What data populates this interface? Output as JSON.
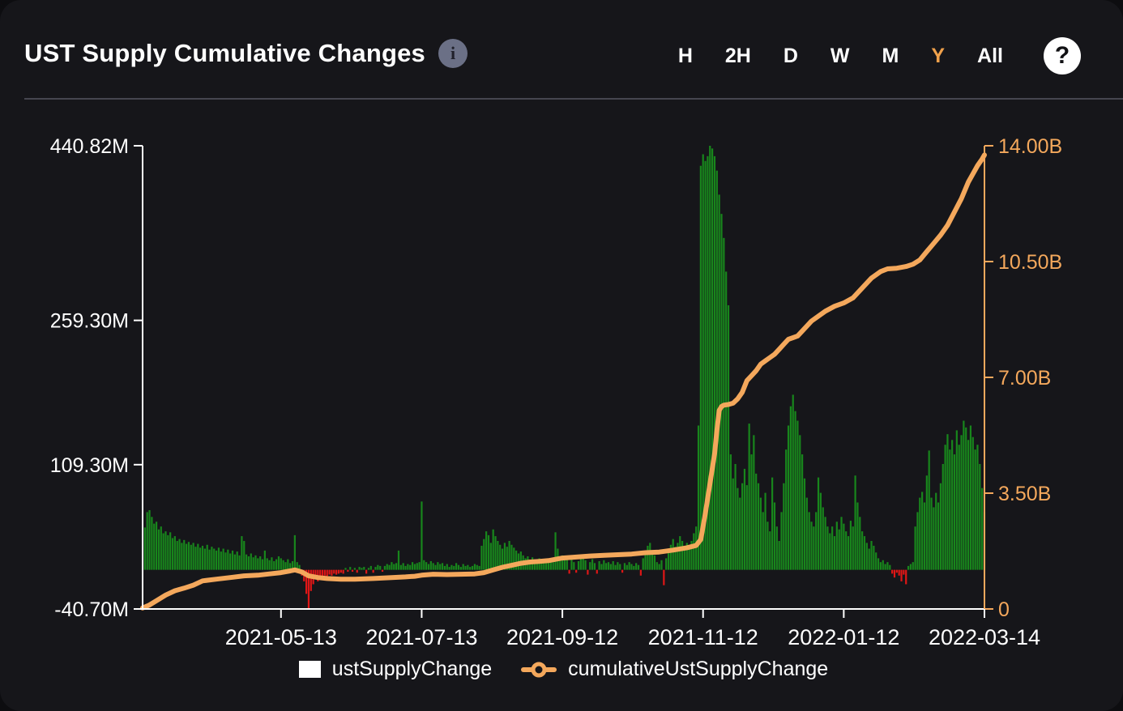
{
  "header": {
    "title": "UST Supply Cumulative Changes",
    "info_glyph": "i"
  },
  "range_selector": {
    "options": [
      "H",
      "2H",
      "D",
      "W",
      "M",
      "Y",
      "All"
    ],
    "active": "Y"
  },
  "help": {
    "label": "?"
  },
  "colors": {
    "page_bg": "#0d0d10",
    "card_bg": "#16161a",
    "axis_left": "#ffffff",
    "axis_right": "#f4a85c",
    "bar_positive": "#18861c",
    "bar_negative": "#df1616",
    "line": "#f4a85c",
    "selector_active": "#f0a14b",
    "divider": "#46464f"
  },
  "chart_data": {
    "type": "bar",
    "title": "UST Supply Cumulative Changes",
    "x_days_total": 365,
    "x_start": "2021-03-15",
    "x_ticks": [
      {
        "day": 60,
        "label": "2021-05-13"
      },
      {
        "day": 121,
        "label": "2021-07-13"
      },
      {
        "day": 182,
        "label": "2021-09-12"
      },
      {
        "day": 243,
        "label": "2021-11-12"
      },
      {
        "day": 304,
        "label": "2022-01-12"
      },
      {
        "day": 365,
        "label": "2022-03-14"
      }
    ],
    "left_axis": {
      "unit": "M",
      "min": -40.7,
      "max": 440.82,
      "ticks": [
        {
          "value": 440.82,
          "label": "440.82M"
        },
        {
          "value": 259.3,
          "label": "259.30M"
        },
        {
          "value": 109.3,
          "label": "109.30M"
        },
        {
          "value": -40.7,
          "label": "-40.70M"
        }
      ]
    },
    "right_axis": {
      "unit": "B",
      "min": 0,
      "max": 14,
      "ticks": [
        {
          "value": 14.0,
          "label": "14.00B"
        },
        {
          "value": 10.5,
          "label": "10.50B"
        },
        {
          "value": 7.0,
          "label": "7.00B"
        },
        {
          "value": 3.5,
          "label": "3.50B"
        },
        {
          "value": 0,
          "label": "0"
        }
      ]
    },
    "series": [
      {
        "name": "ustSupplyChange",
        "type": "bar",
        "axis": "left",
        "unit": "M",
        "colors": {
          "positive": "#18861c",
          "negative": "#df1616"
        },
        "values": [
          44,
          60,
          62,
          55,
          48,
          50,
          42,
          45,
          38,
          40,
          36,
          39,
          33,
          35,
          30,
          32,
          28,
          31,
          27,
          29,
          26,
          28,
          24,
          27,
          23,
          25,
          22,
          26,
          21,
          24,
          22,
          20,
          23,
          19,
          22,
          18,
          21,
          17,
          20,
          16,
          19,
          15,
          35,
          30,
          16,
          14,
          17,
          13,
          15,
          12,
          14,
          11,
          20,
          12,
          10,
          13,
          9,
          11,
          14,
          12,
          10,
          8,
          11,
          7,
          9,
          36,
          8,
          5,
          -6,
          -12,
          -25,
          -40.7,
          -22,
          -15,
          -10,
          -12,
          -8,
          -9,
          -6,
          -7,
          -5,
          -6,
          -4,
          -5,
          -4,
          -3,
          -4,
          2,
          -2,
          3,
          -2,
          2,
          -3,
          3,
          2,
          3,
          -4,
          2,
          4,
          -3,
          3,
          5,
          4,
          -2,
          4,
          6,
          5,
          8,
          6,
          7,
          20,
          5,
          7,
          4,
          6,
          5,
          8,
          6,
          7,
          8,
          71,
          10,
          8,
          6,
          9,
          7,
          5,
          8,
          6,
          7,
          4,
          6,
          3,
          5,
          4,
          7,
          5,
          3,
          6,
          4,
          5,
          3,
          4,
          6,
          5,
          4,
          25,
          32,
          40,
          36,
          28,
          42,
          35,
          30,
          26,
          22,
          28,
          24,
          30,
          26,
          23,
          20,
          17,
          19,
          15,
          12,
          14,
          10,
          13,
          11,
          9,
          12,
          10,
          8,
          11,
          9,
          10,
          8,
          39,
          22,
          12,
          15,
          10,
          13,
          -4,
          11,
          8,
          -3,
          9,
          12,
          14,
          10,
          -5,
          8,
          11,
          7,
          -4,
          9,
          6,
          10,
          7,
          8,
          6,
          9,
          5,
          8,
          6,
          -3,
          7,
          5,
          8,
          6,
          4,
          7,
          5,
          -6,
          12,
          18,
          25,
          28,
          20,
          15,
          8,
          6,
          10,
          -16,
          12,
          20,
          26,
          32,
          24,
          28,
          35,
          30,
          25,
          28,
          22,
          30,
          38,
          45,
          150,
          420,
          432,
          425,
          430,
          440.82,
          438,
          430,
          415,
          390,
          370,
          345,
          310,
          275,
          120,
          95,
          110,
          85,
          75,
          90,
          105,
          88,
          152,
          120,
          140,
          100,
          90,
          75,
          60,
          80,
          50,
          40,
          96,
          70,
          45,
          30,
          60,
          90,
          125,
          150,
          170,
          182,
          165,
          155,
          140,
          120,
          95,
          75,
          60,
          50,
          45,
          60,
          96,
          80,
          65,
          55,
          45,
          38,
          45,
          35,
          50,
          42,
          55,
          48,
          40,
          35,
          51,
          45,
          98,
          70,
          55,
          40,
          35,
          28,
          22,
          30,
          25,
          18,
          12,
          8,
          10,
          6,
          8,
          5,
          -4,
          -8,
          -3,
          -6,
          -12,
          -5,
          -15,
          4,
          6,
          8,
          45,
          60,
          75,
          81,
          70,
          98,
          124,
          75,
          65,
          80,
          70,
          90,
          110,
          130,
          141,
          125,
          135,
          120,
          145,
          130,
          140,
          155,
          148,
          135,
          150,
          138,
          125,
          130,
          110,
          85,
          60
        ]
      },
      {
        "name": "cumulativeUstSupplyChange",
        "type": "line",
        "axis": "right",
        "unit": "B",
        "color": "#f4a85c",
        "points": [
          [
            0,
            0.03
          ],
          [
            3,
            0.12
          ],
          [
            6,
            0.25
          ],
          [
            10,
            0.42
          ],
          [
            14,
            0.55
          ],
          [
            18,
            0.63
          ],
          [
            22,
            0.72
          ],
          [
            26,
            0.85
          ],
          [
            32,
            0.9
          ],
          [
            38,
            0.95
          ],
          [
            44,
            1.0
          ],
          [
            50,
            1.02
          ],
          [
            55,
            1.06
          ],
          [
            60,
            1.1
          ],
          [
            64,
            1.15
          ],
          [
            66,
            1.18
          ],
          [
            69,
            1.12
          ],
          [
            72,
            1.0
          ],
          [
            76,
            0.95
          ],
          [
            80,
            0.92
          ],
          [
            86,
            0.9
          ],
          [
            92,
            0.9
          ],
          [
            100,
            0.92
          ],
          [
            108,
            0.95
          ],
          [
            114,
            0.97
          ],
          [
            118,
            0.99
          ],
          [
            121,
            1.02
          ],
          [
            126,
            1.05
          ],
          [
            132,
            1.04
          ],
          [
            138,
            1.05
          ],
          [
            144,
            1.06
          ],
          [
            148,
            1.1
          ],
          [
            152,
            1.18
          ],
          [
            156,
            1.26
          ],
          [
            160,
            1.32
          ],
          [
            164,
            1.38
          ],
          [
            168,
            1.42
          ],
          [
            172,
            1.44
          ],
          [
            176,
            1.46
          ],
          [
            179,
            1.5
          ],
          [
            182,
            1.54
          ],
          [
            188,
            1.57
          ],
          [
            194,
            1.6
          ],
          [
            200,
            1.62
          ],
          [
            206,
            1.64
          ],
          [
            212,
            1.66
          ],
          [
            218,
            1.7
          ],
          [
            224,
            1.72
          ],
          [
            230,
            1.78
          ],
          [
            236,
            1.85
          ],
          [
            240,
            1.92
          ],
          [
            242,
            2.1
          ],
          [
            244,
            2.9
          ],
          [
            246,
            3.8
          ],
          [
            248,
            4.7
          ],
          [
            249,
            5.4
          ],
          [
            250,
            6.0
          ],
          [
            251,
            6.12
          ],
          [
            252,
            6.16
          ],
          [
            254,
            6.18
          ],
          [
            256,
            6.22
          ],
          [
            258,
            6.35
          ],
          [
            260,
            6.55
          ],
          [
            262,
            6.9
          ],
          [
            264,
            7.05
          ],
          [
            266,
            7.2
          ],
          [
            268,
            7.4
          ],
          [
            270,
            7.5
          ],
          [
            272,
            7.6
          ],
          [
            274,
            7.7
          ],
          [
            276,
            7.85
          ],
          [
            278,
            8.0
          ],
          [
            280,
            8.15
          ],
          [
            282,
            8.2
          ],
          [
            284,
            8.25
          ],
          [
            286,
            8.4
          ],
          [
            288,
            8.55
          ],
          [
            290,
            8.7
          ],
          [
            293,
            8.85
          ],
          [
            296,
            9.0
          ],
          [
            300,
            9.15
          ],
          [
            304,
            9.25
          ],
          [
            308,
            9.4
          ],
          [
            312,
            9.7
          ],
          [
            316,
            10.0
          ],
          [
            320,
            10.2
          ],
          [
            323,
            10.28
          ],
          [
            327,
            10.3
          ],
          [
            331,
            10.35
          ],
          [
            334,
            10.42
          ],
          [
            337,
            10.55
          ],
          [
            340,
            10.8
          ],
          [
            343,
            11.05
          ],
          [
            346,
            11.3
          ],
          [
            349,
            11.6
          ],
          [
            352,
            12.0
          ],
          [
            355,
            12.4
          ],
          [
            358,
            12.9
          ],
          [
            360,
            13.15
          ],
          [
            362,
            13.4
          ],
          [
            364,
            13.6
          ],
          [
            365,
            13.72
          ]
        ]
      }
    ],
    "legend_position": "bottom",
    "grid": false
  }
}
